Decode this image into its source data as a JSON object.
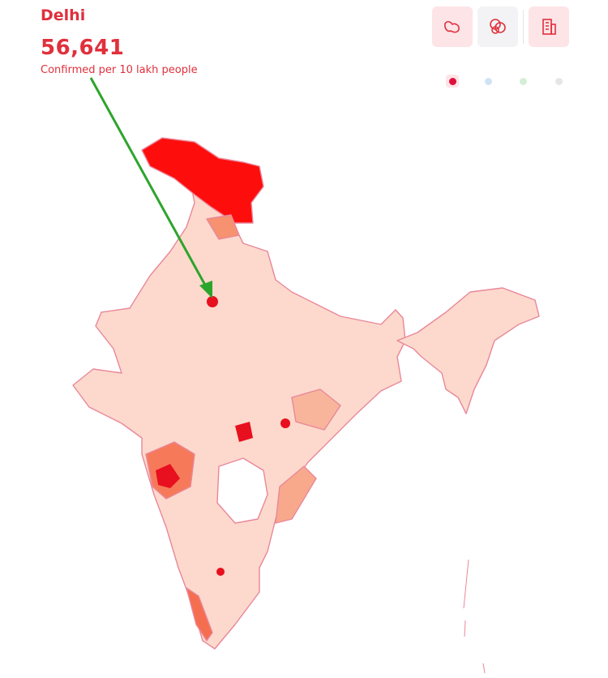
{
  "header": {
    "region": "Delhi",
    "value": "56,641",
    "metric": "Confirmed per 10 lakh people"
  }
}
